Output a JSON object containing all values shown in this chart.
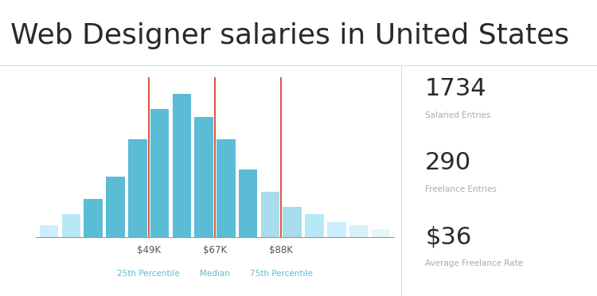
{
  "title": "Web Designer salaries in United States",
  "title_fontsize": 26,
  "title_color": "#2a2a2a",
  "bg_color": "#ffffff",
  "bar_heights": [
    1.5,
    3,
    5,
    8,
    13,
    17,
    19,
    16,
    13,
    9,
    6,
    4,
    3,
    2,
    1.5,
    1
  ],
  "bar_colors": [
    "#cceeff",
    "#b8e8f5",
    "#5bbcd6",
    "#5bbcd6",
    "#5bbcd6",
    "#5bbcd6",
    "#5bbcd6",
    "#5bbcd6",
    "#5bbcd6",
    "#5bbcd6",
    "#a8dcea",
    "#a8dcea",
    "#b8e8f5",
    "#cceeff",
    "#d8f0f8",
    "#e5f5fc"
  ],
  "vline_x": [
    5,
    8,
    11
  ],
  "vline_color": "#d9533d",
  "vline_labels": [
    "$49K",
    "$67K",
    "$88K"
  ],
  "vline_sublabels": [
    "25th Percentile",
    "Median",
    "75th Percentile"
  ],
  "label_color": "#555555",
  "sublabel_color": "#5bbcd6",
  "axis_line_color": "#999999",
  "stats": [
    {
      "value": "1734",
      "label": "Salaried Entries",
      "value_color": "#2a2a2a",
      "label_color": "#aaaaaa"
    },
    {
      "value": "290",
      "label": "Freelance Entries",
      "value_color": "#2a2a2a",
      "label_color": "#aaaaaa"
    },
    {
      "value": "$36",
      "label": "Average Freelance Rate",
      "value_color": "#2a2a2a",
      "label_color": "#aaaaaa"
    }
  ],
  "sep_color": "#dddddd",
  "title_sep_color": "#dddddd"
}
